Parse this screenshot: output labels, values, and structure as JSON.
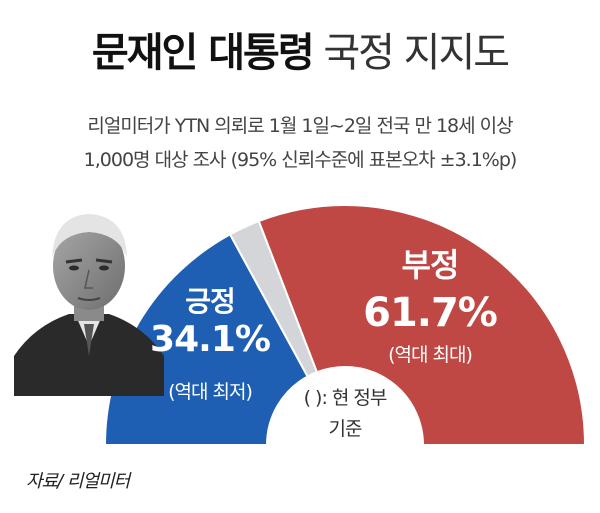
{
  "header": {
    "title_bold": "문재인 대통령",
    "title_light": "국정 지지도"
  },
  "survey": {
    "line1": "리얼미터가 YTN 의뢰로 1월 1일~2일 전국 만 18세 이상",
    "line2": "1,000명 대상 조사 (95% 신뢰수준에 표본오차 ±3.1%p)"
  },
  "chart_data": {
    "type": "pie",
    "shape": "semicircle",
    "slices": [
      {
        "label": "긍정",
        "value": 34.1,
        "display": "34.1%",
        "note": "(역대 최저)",
        "color": "#1f5fb3"
      },
      {
        "label": "",
        "value": 4.2,
        "display": "",
        "note": "",
        "color": "#d4d5d8"
      },
      {
        "label": "부정",
        "value": 61.7,
        "display": "61.7%",
        "note": "(역대 최대)",
        "color": "#bf4844"
      }
    ]
  },
  "footnote": {
    "line1": "( ): 현 정부",
    "line2": "기준"
  },
  "source": "자료/ 리얼미터",
  "colors": {
    "positive": "#1f5fb3",
    "negative": "#bf4844",
    "other": "#d4d5d8"
  }
}
